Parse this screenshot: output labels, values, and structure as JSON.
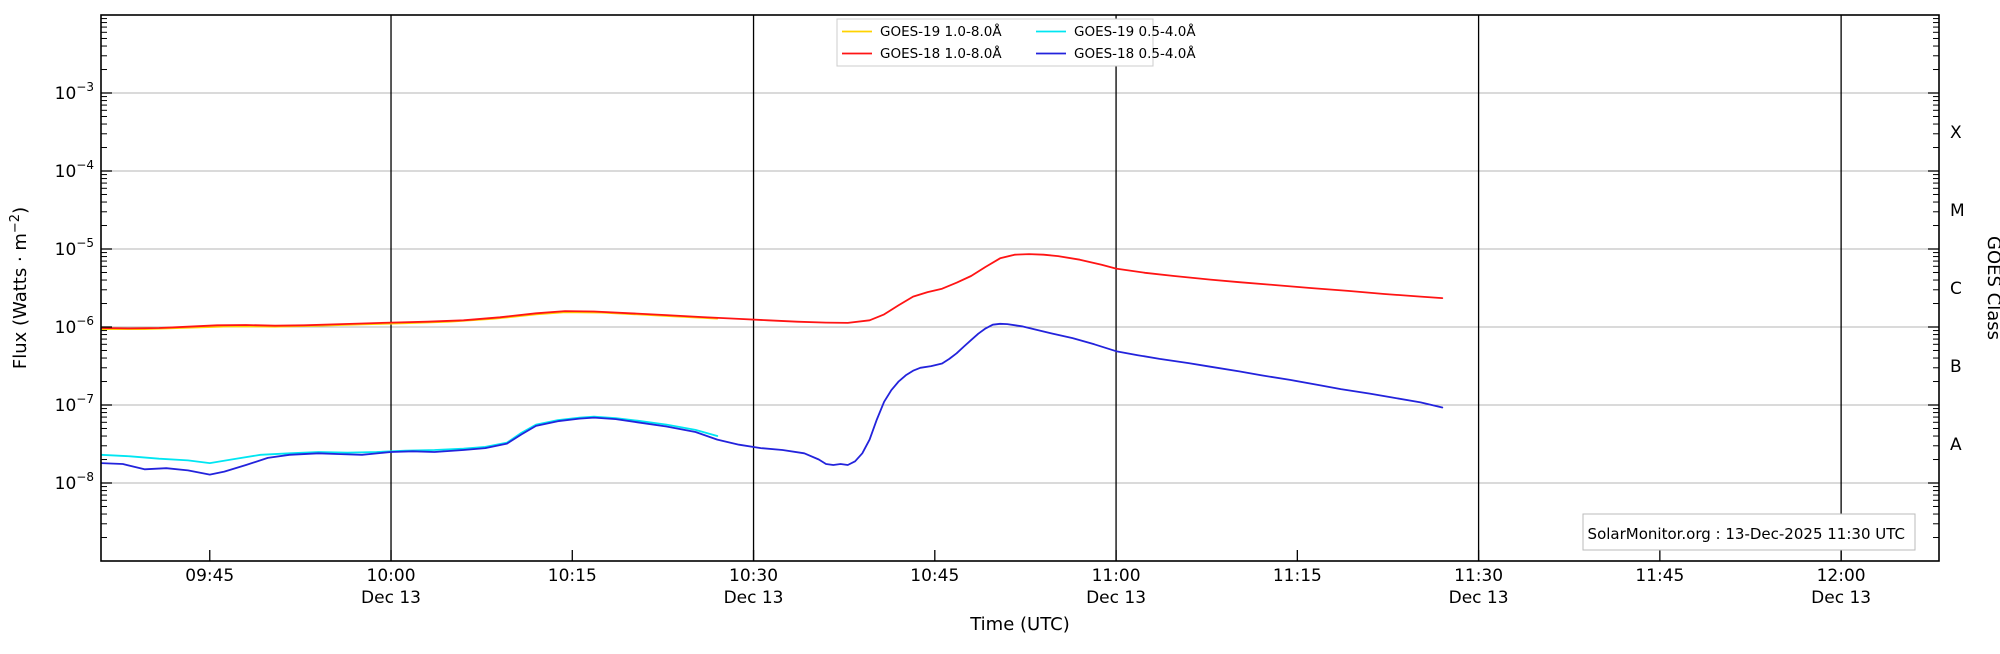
{
  "chart_data": {
    "type": "line",
    "title": "",
    "xlabel": "Time (UTC)",
    "ylabel": {
      "pre": "Flux (Watts · m",
      "sup": "−2",
      "post": ")"
    },
    "right_axis_label": "GOES Class",
    "annotation": "SolarMonitor.org : 13-Dec-2025 11:30 UTC",
    "x_range_hours": [
      9.6,
      12.135
    ],
    "y_range": [
      1e-09,
      0.01
    ],
    "y_tick_exponents": [
      -3,
      -4,
      -5,
      -6,
      -7,
      -8
    ],
    "y_gridline_exponents": [
      -3,
      -4,
      -5,
      -6,
      -7,
      -8
    ],
    "x_halfhour_lines_hours": [
      10.0,
      10.5,
      11.0,
      11.5,
      12.0
    ],
    "x_major_ticks": [
      {
        "hour": 9.75,
        "label": "09:45",
        "date": ""
      },
      {
        "hour": 10.0,
        "label": "10:00",
        "date": "Dec 13"
      },
      {
        "hour": 10.25,
        "label": "10:15",
        "date": ""
      },
      {
        "hour": 10.5,
        "label": "10:30",
        "date": "Dec 13"
      },
      {
        "hour": 10.75,
        "label": "10:45",
        "date": ""
      },
      {
        "hour": 11.0,
        "label": "11:00",
        "date": "Dec 13"
      },
      {
        "hour": 11.25,
        "label": "11:15",
        "date": ""
      },
      {
        "hour": 11.5,
        "label": "11:30",
        "date": "Dec 13"
      },
      {
        "hour": 11.75,
        "label": "11:45",
        "date": ""
      },
      {
        "hour": 12.0,
        "label": "12:00",
        "date": "Dec 13"
      }
    ],
    "goes_classes": [
      {
        "label": "X",
        "log10_center": -3.5
      },
      {
        "label": "M",
        "log10_center": -4.5
      },
      {
        "label": "C",
        "log10_center": -5.5
      },
      {
        "label": "B",
        "log10_center": -6.5
      },
      {
        "label": "A",
        "log10_center": -7.5
      }
    ],
    "legend": {
      "columns": 2,
      "entries": [
        {
          "name": "GOES-19 1.0-8.0Å",
          "color": "#ffd300"
        },
        {
          "name": "GOES-18 1.0-8.0Å",
          "color": "#ff1414"
        },
        {
          "name": "GOES-19 0.5-4.0Å",
          "color": "#00e6f2"
        },
        {
          "name": "GOES-18 0.5-4.0Å",
          "color": "#2323dc"
        }
      ]
    },
    "colors": {
      "gridline": "#b4b4b4",
      "halfhour_line": "#000000",
      "spine": "#000000"
    },
    "series": [
      {
        "name": "GOES-19 1.0-8.0Å",
        "color": "#ffd300",
        "points": [
          [
            9.6,
            9.4e-07
          ],
          [
            9.66,
            9.4e-07
          ],
          [
            9.72,
            9.8e-07
          ],
          [
            9.78,
            1.02e-06
          ],
          [
            9.84,
            1.01e-06
          ],
          [
            9.9,
            1.04e-06
          ],
          [
            9.96,
            1.08e-06
          ],
          [
            10.02,
            1.12e-06
          ],
          [
            10.08,
            1.17e-06
          ],
          [
            10.14,
            1.27e-06
          ],
          [
            10.2,
            1.45e-06
          ],
          [
            10.24,
            1.55e-06
          ],
          [
            10.29,
            1.53e-06
          ],
          [
            10.34,
            1.45e-06
          ],
          [
            10.39,
            1.37e-06
          ],
          [
            10.45,
            1.28e-06
          ]
        ]
      },
      {
        "name": "GOES-19 0.5-4.0Å",
        "color": "#00e6f2",
        "points": [
          [
            9.6,
            2.3e-08
          ],
          [
            9.64,
            2.2e-08
          ],
          [
            9.68,
            2.05e-08
          ],
          [
            9.72,
            1.95e-08
          ],
          [
            9.75,
            1.8e-08
          ],
          [
            9.78,
            2e-08
          ],
          [
            9.82,
            2.3e-08
          ],
          [
            9.86,
            2.4e-08
          ],
          [
            9.9,
            2.5e-08
          ],
          [
            9.94,
            2.45e-08
          ],
          [
            9.98,
            2.5e-08
          ],
          [
            10.02,
            2.6e-08
          ],
          [
            10.06,
            2.65e-08
          ],
          [
            10.1,
            2.75e-08
          ],
          [
            10.13,
            2.9e-08
          ],
          [
            10.16,
            3.3e-08
          ],
          [
            10.18,
            4.4e-08
          ],
          [
            10.2,
            5.6e-08
          ],
          [
            10.23,
            6.4e-08
          ],
          [
            10.26,
            6.9e-08
          ],
          [
            10.28,
            7.1e-08
          ],
          [
            10.31,
            6.8e-08
          ],
          [
            10.34,
            6.3e-08
          ],
          [
            10.38,
            5.6e-08
          ],
          [
            10.42,
            4.8e-08
          ],
          [
            10.45,
            4e-08
          ]
        ]
      },
      {
        "name": "GOES-18 1.0-8.0Å",
        "color": "#ff1414",
        "points": [
          [
            9.6,
            9.7e-07
          ],
          [
            9.64,
            9.6e-07
          ],
          [
            9.68,
            9.7e-07
          ],
          [
            9.72,
            1.01e-06
          ],
          [
            9.76,
            1.05e-06
          ],
          [
            9.8,
            1.06e-06
          ],
          [
            9.84,
            1.04e-06
          ],
          [
            9.88,
            1.05e-06
          ],
          [
            9.92,
            1.08e-06
          ],
          [
            9.96,
            1.11e-06
          ],
          [
            10.0,
            1.14e-06
          ],
          [
            10.05,
            1.17e-06
          ],
          [
            10.1,
            1.22e-06
          ],
          [
            10.15,
            1.33e-06
          ],
          [
            10.2,
            1.5e-06
          ],
          [
            10.24,
            1.6e-06
          ],
          [
            10.28,
            1.58e-06
          ],
          [
            10.33,
            1.5e-06
          ],
          [
            10.38,
            1.42e-06
          ],
          [
            10.43,
            1.34e-06
          ],
          [
            10.48,
            1.27e-06
          ],
          [
            10.52,
            1.22e-06
          ],
          [
            10.56,
            1.17e-06
          ],
          [
            10.6,
            1.14e-06
          ],
          [
            10.63,
            1.13e-06
          ],
          [
            10.66,
            1.22e-06
          ],
          [
            10.68,
            1.45e-06
          ],
          [
            10.7,
            1.9e-06
          ],
          [
            10.72,
            2.45e-06
          ],
          [
            10.74,
            2.8e-06
          ],
          [
            10.76,
            3.1e-06
          ],
          [
            10.78,
            3.7e-06
          ],
          [
            10.8,
            4.5e-06
          ],
          [
            10.82,
            5.9e-06
          ],
          [
            10.84,
            7.6e-06
          ],
          [
            10.86,
            8.45e-06
          ],
          [
            10.88,
            8.6e-06
          ],
          [
            10.9,
            8.45e-06
          ],
          [
            10.92,
            8.1e-06
          ],
          [
            10.95,
            7.3e-06
          ],
          [
            10.98,
            6.3e-06
          ],
          [
            11.0,
            5.6e-06
          ],
          [
            11.04,
            4.95e-06
          ],
          [
            11.08,
            4.5e-06
          ],
          [
            11.13,
            4.05e-06
          ],
          [
            11.17,
            3.75e-06
          ],
          [
            11.22,
            3.45e-06
          ],
          [
            11.27,
            3.15e-06
          ],
          [
            11.32,
            2.9e-06
          ],
          [
            11.37,
            2.65e-06
          ],
          [
            11.42,
            2.45e-06
          ],
          [
            11.45,
            2.35e-06
          ]
        ]
      },
      {
        "name": "GOES-18 0.5-4.0Å",
        "color": "#2323dc",
        "points": [
          [
            9.6,
            1.8e-08
          ],
          [
            9.63,
            1.75e-08
          ],
          [
            9.66,
            1.5e-08
          ],
          [
            9.69,
            1.55e-08
          ],
          [
            9.72,
            1.45e-08
          ],
          [
            9.75,
            1.28e-08
          ],
          [
            9.77,
            1.4e-08
          ],
          [
            9.8,
            1.7e-08
          ],
          [
            9.83,
            2.1e-08
          ],
          [
            9.86,
            2.3e-08
          ],
          [
            9.9,
            2.4e-08
          ],
          [
            9.93,
            2.35e-08
          ],
          [
            9.96,
            2.3e-08
          ],
          [
            10.0,
            2.5e-08
          ],
          [
            10.03,
            2.55e-08
          ],
          [
            10.06,
            2.5e-08
          ],
          [
            10.1,
            2.65e-08
          ],
          [
            10.13,
            2.8e-08
          ],
          [
            10.16,
            3.2e-08
          ],
          [
            10.18,
            4.2e-08
          ],
          [
            10.2,
            5.4e-08
          ],
          [
            10.23,
            6.2e-08
          ],
          [
            10.26,
            6.7e-08
          ],
          [
            10.28,
            6.9e-08
          ],
          [
            10.31,
            6.6e-08
          ],
          [
            10.34,
            6e-08
          ],
          [
            10.38,
            5.3e-08
          ],
          [
            10.42,
            4.5e-08
          ],
          [
            10.45,
            3.6e-08
          ],
          [
            10.48,
            3.1e-08
          ],
          [
            10.51,
            2.8e-08
          ],
          [
            10.54,
            2.65e-08
          ],
          [
            10.57,
            2.4e-08
          ],
          [
            10.59,
            2e-08
          ],
          [
            10.6,
            1.75e-08
          ],
          [
            10.61,
            1.7e-08
          ],
          [
            10.62,
            1.75e-08
          ],
          [
            10.63,
            1.7e-08
          ],
          [
            10.64,
            1.9e-08
          ],
          [
            10.65,
            2.4e-08
          ],
          [
            10.66,
            3.6e-08
          ],
          [
            10.67,
            6.5e-08
          ],
          [
            10.68,
            1.1e-07
          ],
          [
            10.69,
            1.55e-07
          ],
          [
            10.7,
            2e-07
          ],
          [
            10.71,
            2.4e-07
          ],
          [
            10.72,
            2.75e-07
          ],
          [
            10.73,
            3e-07
          ],
          [
            10.745,
            3.15e-07
          ],
          [
            10.76,
            3.4e-07
          ],
          [
            10.77,
            3.9e-07
          ],
          [
            10.78,
            4.6e-07
          ],
          [
            10.79,
            5.6e-07
          ],
          [
            10.8,
            6.8e-07
          ],
          [
            10.81,
            8.2e-07
          ],
          [
            10.82,
            9.6e-07
          ],
          [
            10.83,
            1.07e-06
          ],
          [
            10.84,
            1.1e-06
          ],
          [
            10.85,
            1.09e-06
          ],
          [
            10.87,
            1.02e-06
          ],
          [
            10.89,
            9.2e-07
          ],
          [
            10.91,
            8.3e-07
          ],
          [
            10.94,
            7.2e-07
          ],
          [
            10.97,
            6e-07
          ],
          [
            11.0,
            4.9e-07
          ],
          [
            11.03,
            4.35e-07
          ],
          [
            11.06,
            3.9e-07
          ],
          [
            11.1,
            3.45e-07
          ],
          [
            11.13,
            3.1e-07
          ],
          [
            11.17,
            2.7e-07
          ],
          [
            11.2,
            2.4e-07
          ],
          [
            11.24,
            2.1e-07
          ],
          [
            11.28,
            1.8e-07
          ],
          [
            11.31,
            1.6e-07
          ],
          [
            11.35,
            1.4e-07
          ],
          [
            11.38,
            1.25e-07
          ],
          [
            11.42,
            1.08e-07
          ],
          [
            11.45,
            9.3e-08
          ]
        ]
      }
    ]
  }
}
